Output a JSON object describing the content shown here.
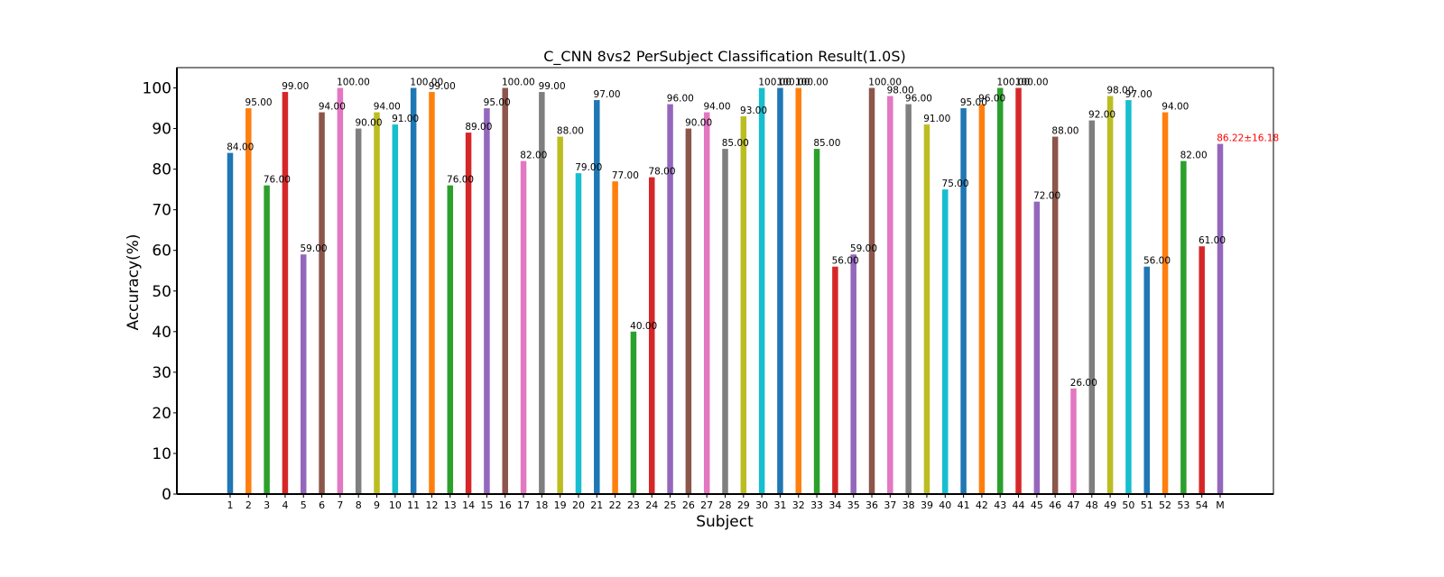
{
  "chart_data": {
    "type": "bar",
    "title": "C_CNN 8vs2 PerSubject Classification Result(1.0S)",
    "xlabel": "Subject",
    "ylabel": "Accuracy(%)",
    "ylim": [
      0,
      105
    ],
    "yticks": [
      0,
      10,
      20,
      30,
      40,
      50,
      60,
      70,
      80,
      90,
      100
    ],
    "grid": false,
    "categories": [
      "1",
      "2",
      "3",
      "4",
      "5",
      "6",
      "7",
      "8",
      "9",
      "10",
      "11",
      "12",
      "13",
      "14",
      "15",
      "16",
      "17",
      "18",
      "19",
      "20",
      "21",
      "22",
      "23",
      "24",
      "25",
      "26",
      "27",
      "28",
      "29",
      "30",
      "31",
      "32",
      "33",
      "34",
      "35",
      "36",
      "37",
      "38",
      "39",
      "40",
      "41",
      "42",
      "43",
      "44",
      "45",
      "46",
      "47",
      "48",
      "49",
      "50",
      "51",
      "52",
      "53",
      "54",
      "M"
    ],
    "values": [
      84,
      95,
      76,
      99,
      59,
      94,
      100,
      90,
      94,
      91,
      100,
      99,
      76,
      89,
      95,
      100,
      82,
      99,
      88,
      79,
      97,
      77,
      40,
      78,
      96,
      90,
      94,
      85,
      93,
      100,
      100,
      100,
      85,
      56,
      59,
      100,
      98,
      96,
      91,
      75,
      95,
      96,
      100,
      100,
      72,
      88,
      26,
      92,
      98,
      97,
      56,
      94,
      82,
      61,
      86.22
    ],
    "data_labels": [
      "84.00",
      "95.00",
      "76.00",
      "99.00",
      "59.00",
      "94.00",
      "100.00",
      "90.00",
      "94.00",
      "91.00",
      "100.00",
      "99.00",
      "76.00",
      "89.00",
      "95.00",
      "100.00",
      "82.00",
      "99.00",
      "88.00",
      "79.00",
      "97.00",
      "77.00",
      "40.00",
      "78.00",
      "96.00",
      "90.00",
      "94.00",
      "85.00",
      "93.00",
      "100.00",
      "100.00",
      "100.00",
      "85.00",
      "56.00",
      "59.00",
      "100.00",
      "98.00",
      "96.00",
      "91.00",
      "75.00",
      "95.00",
      "96.00",
      "100.00",
      "100.00",
      "72.00",
      "88.00",
      "26.00",
      "92.00",
      "98.00",
      "97.00",
      "56.00",
      "94.00",
      "82.00",
      "61.00",
      "86.22±16.18"
    ],
    "color_cycle": [
      "#1f77b4",
      "#ff7f0e",
      "#2ca02c",
      "#d62728",
      "#9467bd",
      "#8c564b",
      "#e377c2",
      "#7f7f7f",
      "#bcbd22",
      "#17becf"
    ],
    "mean_label_color": "#ff0000"
  }
}
